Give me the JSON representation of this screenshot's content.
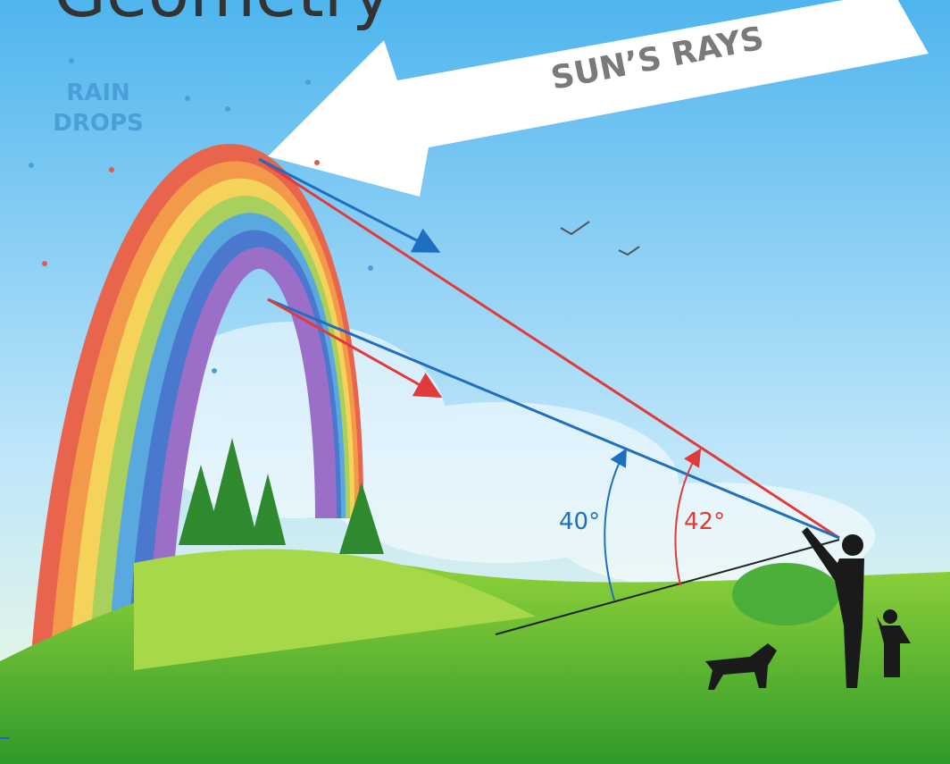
{
  "title": "Geometry",
  "labels": {
    "rain_line1": "RAIN",
    "rain_line2": "DROPS",
    "sun_rays": "SUN’S RAYS",
    "angle_blue": "40°",
    "angle_red": "42°"
  }
}
